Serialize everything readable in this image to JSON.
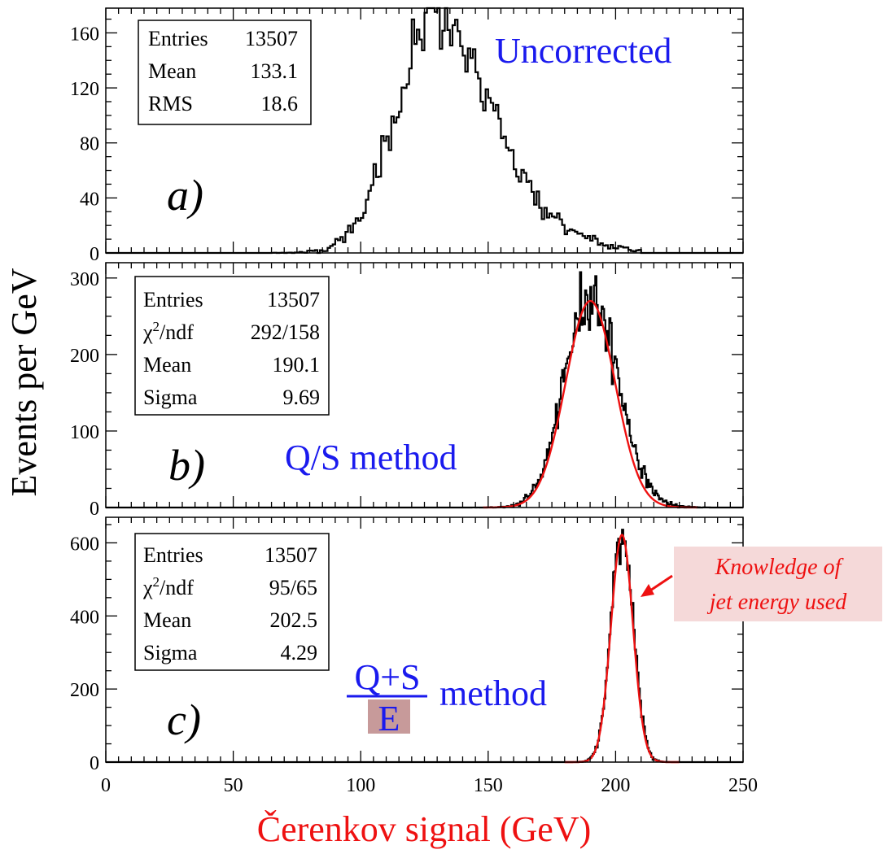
{
  "figure": {
    "ylabel": "Events per GeV",
    "xlabel": "Čerenkov signal (GeV)",
    "xlabel_color": "#ee1111",
    "ylabel_color": "#000000",
    "label_color": "#1a1aee",
    "fit_color": "#ee1111",
    "hist_color": "#000000"
  },
  "chart_data": [
    {
      "type": "histogram",
      "panel": "a)",
      "label": "Uncorrected",
      "xlim": [
        0,
        250
      ],
      "ylim": [
        0,
        178
      ],
      "yticks": [
        0,
        40,
        80,
        120,
        160
      ],
      "xticks": [
        0,
        50,
        100,
        150,
        200,
        250
      ],
      "stats": [
        {
          "name": "Entries",
          "value": "13507"
        },
        {
          "name": "Mean",
          "value": "133.1"
        },
        {
          "name": "RMS",
          "value": "18.6"
        }
      ],
      "distribution": {
        "mean": 128,
        "sigma_left": 15,
        "sigma_right": 20,
        "peak": 162,
        "tail_amp": 22,
        "tail_mean": 160,
        "tail_sigma": 22,
        "noise": 0.07,
        "xmin": 75,
        "xmax": 200,
        "bin_width": 1
      },
      "fit": null
    },
    {
      "type": "histogram",
      "panel": "b)",
      "label": "Q/S method",
      "xlim": [
        0,
        250
      ],
      "ylim": [
        0,
        320
      ],
      "yticks": [
        0,
        100,
        200,
        300
      ],
      "xticks": [
        0,
        50,
        100,
        150,
        200,
        250
      ],
      "stats": [
        {
          "name": "Entries",
          "value": "13507"
        },
        {
          "name": "χ2/ndf",
          "value": "292/158"
        },
        {
          "name": "Mean",
          "value": "190.1"
        },
        {
          "name": "Sigma",
          "value": "9.69"
        }
      ],
      "distribution": {
        "mean": 190,
        "sigma_left": 10,
        "sigma_right": 11,
        "peak": 278,
        "tail_amp": 0,
        "tail_mean": 0,
        "tail_sigma": 1,
        "noise": 0.06,
        "xmin": 150,
        "xmax": 240,
        "bin_width": 0.5
      },
      "fit": {
        "mean": 190.1,
        "sigma": 9.69,
        "amp": 270,
        "xmin": 148,
        "xmax": 232
      }
    },
    {
      "type": "histogram",
      "panel": "c)",
      "label_numerator": "Q+S",
      "label_denominator": "E",
      "label_suffix": "method",
      "xlim": [
        0,
        250
      ],
      "ylim": [
        0,
        670
      ],
      "yticks": [
        0,
        200,
        400,
        600
      ],
      "xticks": [
        0,
        50,
        100,
        150,
        200,
        250
      ],
      "stats": [
        {
          "name": "Entries",
          "value": "13507"
        },
        {
          "name": "χ2/ndf",
          "value": "95/65"
        },
        {
          "name": "Mean",
          "value": "202.5"
        },
        {
          "name": "Sigma",
          "value": "4.29"
        }
      ],
      "annotation": {
        "lines": [
          "Knowledge of",
          "jet energy used"
        ],
        "color": "#ee1111",
        "background": "#f5d9d9"
      },
      "distribution": {
        "mean": 202.5,
        "sigma_left": 4.29,
        "sigma_right": 4.4,
        "peak": 630,
        "tail_amp": 0,
        "tail_mean": 0,
        "tail_sigma": 1,
        "noise": 0.04,
        "xmin": 185,
        "xmax": 222,
        "bin_width": 0.5
      },
      "fit": {
        "mean": 202.5,
        "sigma": 4.29,
        "amp": 622,
        "xmin": 180,
        "xmax": 225
      }
    }
  ]
}
